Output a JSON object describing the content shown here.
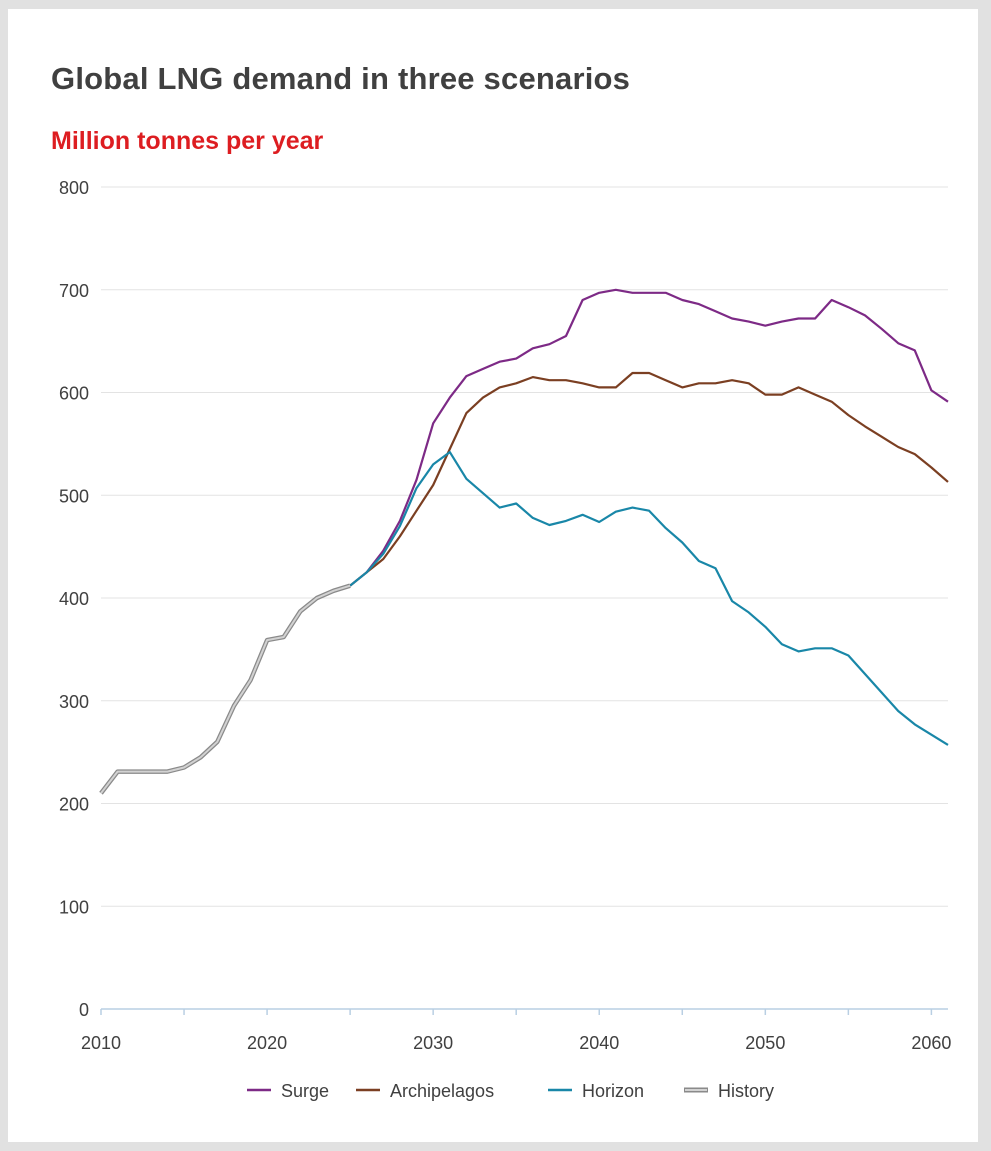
{
  "chart_data": {
    "type": "line",
    "title": "Global LNG demand in three scenarios",
    "subtitle": "Million tonnes per year",
    "xlabel": "",
    "ylabel": "Million tonnes per year",
    "xlim": [
      2010,
      2061
    ],
    "ylim": [
      0,
      800
    ],
    "x_ticks": [
      2010,
      2020,
      2030,
      2040,
      2050,
      2060
    ],
    "y_ticks": [
      0,
      100,
      200,
      300,
      400,
      500,
      600,
      700,
      800
    ],
    "grid": true,
    "legend_position": "bottom",
    "series": [
      {
        "name": "Surge",
        "color": "#7d2a86",
        "x": [
          2025,
          2026,
          2027,
          2028,
          2029,
          2030,
          2031,
          2032,
          2033,
          2034,
          2035,
          2036,
          2037,
          2038,
          2039,
          2040,
          2041,
          2042,
          2043,
          2044,
          2045,
          2046,
          2047,
          2048,
          2049,
          2050,
          2051,
          2052,
          2053,
          2054,
          2055,
          2056,
          2057,
          2058,
          2059,
          2060,
          2061
        ],
        "values": [
          412,
          425,
          446,
          475,
          515,
          570,
          595,
          616,
          623,
          630,
          633,
          643,
          647,
          655,
          690,
          697,
          700,
          697,
          697,
          697,
          690,
          686,
          679,
          672,
          669,
          665,
          669,
          672,
          672,
          690,
          683,
          675,
          662,
          648,
          641,
          602,
          591
        ]
      },
      {
        "name": "Archipelagos",
        "color": "#7b3f22",
        "x": [
          2025,
          2026,
          2027,
          2028,
          2029,
          2030,
          2031,
          2032,
          2033,
          2034,
          2035,
          2036,
          2037,
          2038,
          2039,
          2040,
          2041,
          2042,
          2043,
          2044,
          2045,
          2046,
          2047,
          2048,
          2049,
          2050,
          2051,
          2052,
          2053,
          2054,
          2055,
          2056,
          2057,
          2058,
          2059,
          2060,
          2061
        ],
        "values": [
          412,
          425,
          438,
          460,
          485,
          510,
          545,
          580,
          595,
          605,
          609,
          615,
          612,
          612,
          609,
          605,
          605,
          619,
          619,
          612,
          605,
          609,
          609,
          612,
          609,
          598,
          598,
          605,
          598,
          591,
          578,
          567,
          557,
          547,
          540,
          527,
          513
        ]
      },
      {
        "name": "Horizon",
        "color": "#1987a8",
        "x": [
          2025,
          2026,
          2027,
          2028,
          2029,
          2030,
          2031,
          2032,
          2033,
          2034,
          2035,
          2036,
          2037,
          2038,
          2039,
          2040,
          2041,
          2042,
          2043,
          2044,
          2045,
          2046,
          2047,
          2048,
          2049,
          2050,
          2051,
          2052,
          2053,
          2054,
          2055,
          2056,
          2057,
          2058,
          2059,
          2060,
          2061
        ],
        "values": [
          412,
          425,
          443,
          470,
          507,
          530,
          542,
          516,
          502,
          488,
          492,
          478,
          471,
          475,
          481,
          474,
          484,
          488,
          485,
          468,
          454,
          436,
          429,
          397,
          386,
          372,
          355,
          348,
          351,
          351,
          344,
          326,
          308,
          290,
          277,
          267,
          257
        ]
      },
      {
        "name": "History",
        "color": "#bdbdbd",
        "x": [
          2010,
          2011,
          2012,
          2013,
          2014,
          2015,
          2016,
          2017,
          2018,
          2019,
          2020,
          2021,
          2022,
          2023,
          2024,
          2025
        ],
        "values": [
          210,
          231,
          231,
          231,
          231,
          235,
          245,
          260,
          295,
          320,
          359,
          362,
          387,
          400,
          407,
          412
        ]
      }
    ]
  }
}
